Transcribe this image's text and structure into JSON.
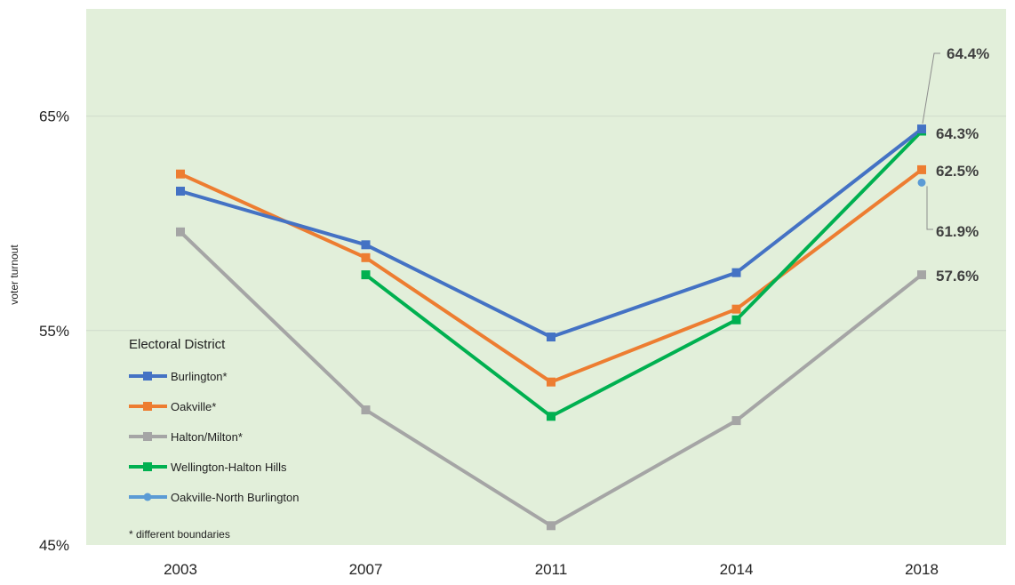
{
  "chart_data": {
    "type": "line",
    "ylabel": "voter turnout",
    "ylim": [
      45,
      70
    ],
    "yticks": [
      45,
      55,
      65
    ],
    "ytick_labels": [
      "45%",
      "55%",
      "65%"
    ],
    "categories": [
      "2003",
      "2007",
      "2011",
      "2014",
      "2018"
    ],
    "grid": "horizontal",
    "plot_background": "#e2efda",
    "legend_title": "Electoral District",
    "legend_placement": "lower-left",
    "note": "* different boundaries",
    "series": [
      {
        "name": "Burlington*",
        "color": "#4472c4",
        "marker": "square",
        "values": [
          61.5,
          59.0,
          54.7,
          57.7,
          64.4
        ]
      },
      {
        "name": "Oakville*",
        "color": "#ed7d31",
        "marker": "square",
        "values": [
          62.3,
          58.4,
          52.6,
          56.0,
          62.5
        ]
      },
      {
        "name": "Halton/Milton*",
        "color": "#a5a5a5",
        "marker": "square",
        "values": [
          59.6,
          51.3,
          45.9,
          50.8,
          57.6
        ]
      },
      {
        "name": "Wellington-Halton Hills",
        "color": "#00b050",
        "marker": "square",
        "values": [
          null,
          57.6,
          51.0,
          55.5,
          64.3
        ]
      },
      {
        "name": "Oakville-North Burlington",
        "color": "#5b9bd5",
        "marker": "circle",
        "values": [
          null,
          null,
          null,
          null,
          61.9
        ]
      }
    ],
    "data_labels": [
      "64.4%",
      "64.3%",
      "62.5%",
      "61.9%",
      "57.6%"
    ]
  }
}
